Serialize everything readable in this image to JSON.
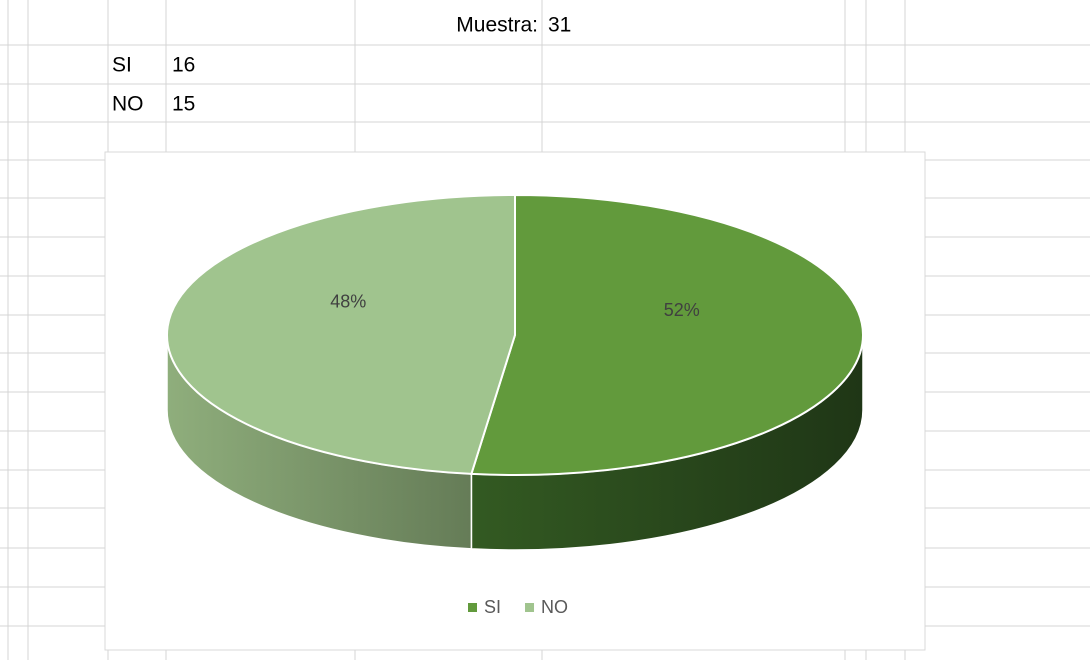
{
  "sheet": {
    "sample_label": "Muestra:",
    "sample_value": "31",
    "rows": [
      [
        "SI",
        "16"
      ],
      [
        "NO",
        "15"
      ]
    ]
  },
  "chart_data": {
    "type": "pie",
    "categories": [
      "SI",
      "NO"
    ],
    "values": [
      52,
      48
    ],
    "value_labels": [
      "52%",
      "48%"
    ],
    "colors": [
      "#629a3c",
      "#a0c48e"
    ],
    "legend": "bottom"
  }
}
